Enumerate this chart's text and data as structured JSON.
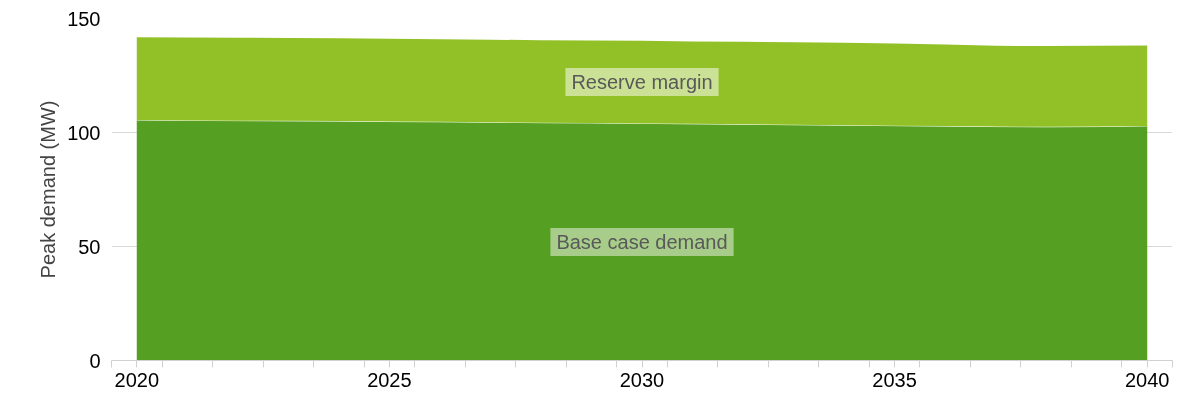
{
  "chart_data": {
    "type": "area",
    "stacked": true,
    "ylabel": "Peak demand (MW)",
    "x": [
      2020,
      2021,
      2022,
      2023,
      2024,
      2025,
      2026,
      2027,
      2028,
      2029,
      2030,
      2031,
      2032,
      2033,
      2034,
      2035,
      2036,
      2037,
      2038,
      2039,
      2040
    ],
    "series": [
      {
        "name": "Base case demand",
        "color": "#55a023",
        "values": [
          105.5,
          105.3,
          105.2,
          105.1,
          105.0,
          104.8,
          104.7,
          104.5,
          104.3,
          104.2,
          104.0,
          103.8,
          103.6,
          103.4,
          103.2,
          103.0,
          102.8,
          102.6,
          102.5,
          102.6,
          102.9
        ]
      },
      {
        "name": "Reserve margin",
        "color": "#92c127",
        "values": [
          36.3,
          36.4,
          36.4,
          36.3,
          36.3,
          36.3,
          36.2,
          36.2,
          36.2,
          36.1,
          36.2,
          36.1,
          36.2,
          36.2,
          36.2,
          36.0,
          35.8,
          35.4,
          35.4,
          35.5,
          35.3
        ]
      }
    ],
    "xlim": [
      2019.5,
      2040.5
    ],
    "ylim": [
      0,
      150
    ],
    "xticks": [
      {
        "value": 2019.5,
        "label": null
      },
      {
        "value": 2020,
        "label": "2020"
      },
      {
        "value": 2020.5,
        "label": null
      },
      {
        "value": 2021.5,
        "label": null
      },
      {
        "value": 2022.5,
        "label": null
      },
      {
        "value": 2023.5,
        "label": null
      },
      {
        "value": 2024.5,
        "label": null
      },
      {
        "value": 2025,
        "label": "2025"
      },
      {
        "value": 2025.5,
        "label": null
      },
      {
        "value": 2026.5,
        "label": null
      },
      {
        "value": 2027.5,
        "label": null
      },
      {
        "value": 2028.5,
        "label": null
      },
      {
        "value": 2029.5,
        "label": null
      },
      {
        "value": 2030,
        "label": "2030"
      },
      {
        "value": 2030.5,
        "label": null
      },
      {
        "value": 2031.5,
        "label": null
      },
      {
        "value": 2032.5,
        "label": null
      },
      {
        "value": 2033.5,
        "label": null
      },
      {
        "value": 2034.5,
        "label": null
      },
      {
        "value": 2035,
        "label": "2035"
      },
      {
        "value": 2035.5,
        "label": null
      },
      {
        "value": 2036.5,
        "label": null
      },
      {
        "value": 2037.5,
        "label": null
      },
      {
        "value": 2038.5,
        "label": null
      },
      {
        "value": 2039.5,
        "label": null
      },
      {
        "value": 2040,
        "label": "2040"
      },
      {
        "value": 2040.5,
        "label": null
      }
    ],
    "yticks": [
      0,
      50,
      100,
      150
    ],
    "grid": "y",
    "legend": false
  }
}
